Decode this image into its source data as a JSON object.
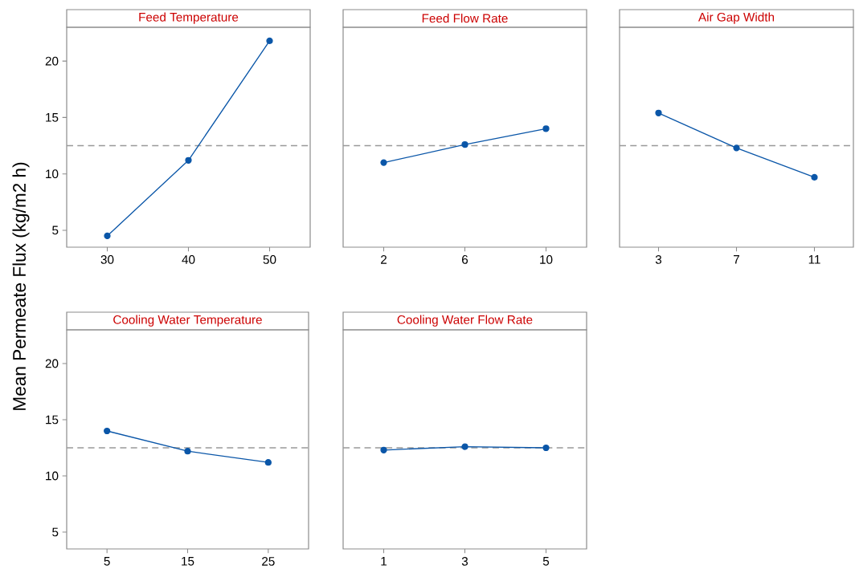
{
  "chart_data": [
    {
      "type": "line",
      "title": "Feed Temperature",
      "ylabel": "Mean Permeate Flux (kg/m2 h)",
      "x": [
        30,
        40,
        50
      ],
      "values": [
        4.5,
        11.2,
        21.8
      ],
      "color": "#0a56a8",
      "marker": "circle",
      "xlim": [
        25,
        55
      ],
      "xticks": [
        30,
        40,
        50
      ],
      "ylim": [
        3.5,
        23
      ],
      "yticks": [
        5,
        10,
        15,
        20
      ],
      "grid": false,
      "ref_lines": [
        {
          "axis": "y",
          "value": 12.5,
          "color": "#999999",
          "line_style": "dashed"
        }
      ]
    },
    {
      "type": "line",
      "title": "Feed Flow Rate",
      "x": [
        2,
        6,
        10
      ],
      "values": [
        11.0,
        12.6,
        14.0
      ],
      "color": "#0a56a8",
      "marker": "circle",
      "xlim": [
        0,
        12
      ],
      "xticks": [
        2,
        6,
        10
      ],
      "ylim": [
        3.5,
        23
      ],
      "tick_labels": "x",
      "grid": false,
      "ref_lines": [
        {
          "axis": "y",
          "value": 12.5,
          "color": "#999999",
          "line_style": "dashed"
        }
      ]
    },
    {
      "type": "line",
      "title": "Air Gap Width",
      "x": [
        3,
        7,
        11
      ],
      "values": [
        15.4,
        12.3,
        9.7
      ],
      "color": "#0a56a8",
      "marker": "circle",
      "xlim": [
        1,
        13
      ],
      "xticks": [
        3,
        7,
        11
      ],
      "ylim": [
        3.5,
        23
      ],
      "tick_labels": "x",
      "grid": false,
      "ref_lines": [
        {
          "axis": "y",
          "value": 12.5,
          "color": "#999999",
          "line_style": "dashed"
        }
      ]
    },
    {
      "type": "line",
      "title": "Cooling Water Temperature",
      "x": [
        5,
        15,
        25
      ],
      "values": [
        14.0,
        12.2,
        11.2
      ],
      "color": "#0a56a8",
      "marker": "circle",
      "xlim": [
        0,
        30
      ],
      "xticks": [
        5,
        15,
        25
      ],
      "ylim": [
        3.5,
        23
      ],
      "yticks": [
        5,
        10,
        15,
        20
      ],
      "grid": false,
      "ref_lines": [
        {
          "axis": "y",
          "value": 12.5,
          "color": "#999999",
          "line_style": "dashed"
        }
      ]
    },
    {
      "type": "line",
      "title": "Cooling Water Flow Rate",
      "x": [
        1,
        3,
        5
      ],
      "values": [
        12.3,
        12.6,
        12.5
      ],
      "color": "#0a56a8",
      "marker": "circle",
      "xlim": [
        0,
        6
      ],
      "xticks": [
        1,
        3,
        5
      ],
      "ylim": [
        3.5,
        23
      ],
      "tick_labels": "x",
      "grid": false,
      "ref_lines": [
        {
          "axis": "y",
          "value": 12.5,
          "color": "#999999",
          "line_style": "dashed"
        }
      ]
    }
  ]
}
